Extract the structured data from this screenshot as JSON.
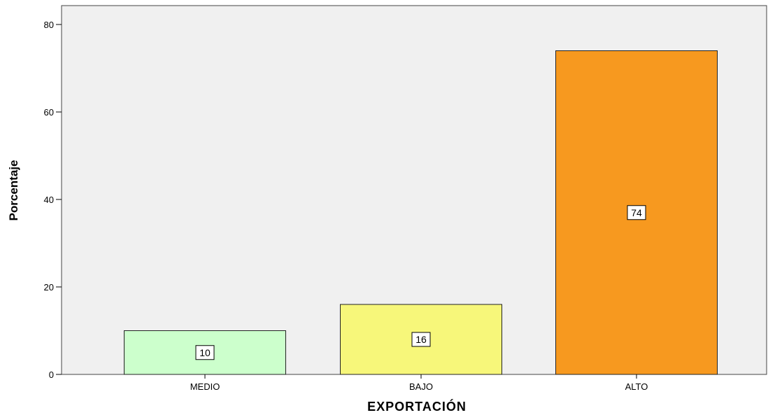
{
  "chart_data": {
    "type": "bar",
    "categories": [
      "MEDIO",
      "BAJO",
      "ALTO"
    ],
    "values": [
      10,
      16,
      74
    ],
    "data_labels": [
      "10",
      "16",
      "74"
    ],
    "colors": [
      "#ccffcc",
      "#f7f77a",
      "#f7991f"
    ],
    "plot_background": "#f0f0f0",
    "xlabel": "EXPORTACIÓN",
    "ylabel": "Porcentaje",
    "ylim": [
      0,
      84
    ],
    "yticks": [
      0,
      20,
      40,
      60,
      80
    ],
    "grid": false,
    "legend": false
  }
}
